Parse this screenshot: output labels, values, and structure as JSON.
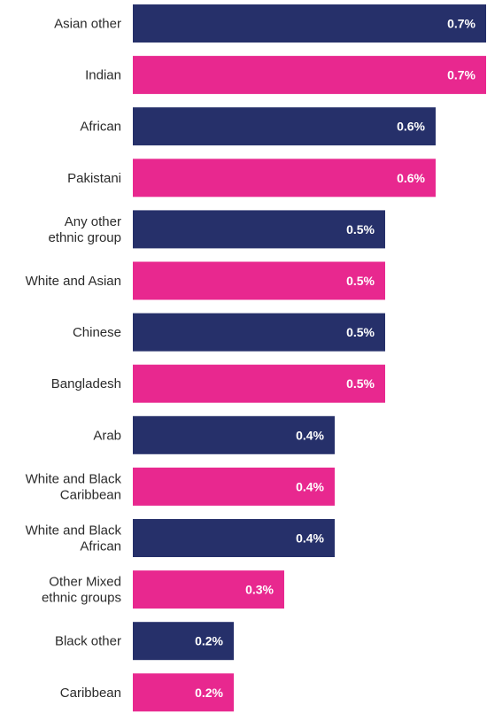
{
  "chart_data": {
    "type": "bar",
    "orientation": "horizontal",
    "categories": [
      [
        "Asian other"
      ],
      [
        "Indian"
      ],
      [
        "African"
      ],
      [
        "Pakistani"
      ],
      [
        "Any other",
        "ethnic group"
      ],
      [
        "White and Asian"
      ],
      [
        "Chinese"
      ],
      [
        "Bangladesh"
      ],
      [
        "Arab"
      ],
      [
        "White and Black",
        "Caribbean"
      ],
      [
        "White and Black",
        "African"
      ],
      [
        "Other Mixed",
        "ethnic groups"
      ],
      [
        "Black other"
      ],
      [
        "Caribbean"
      ]
    ],
    "values": [
      0.7,
      0.7,
      0.6,
      0.6,
      0.5,
      0.5,
      0.5,
      0.5,
      0.4,
      0.4,
      0.4,
      0.3,
      0.2,
      0.2
    ],
    "value_labels": [
      "0.7%",
      "0.7%",
      "0.6%",
      "0.6%",
      "0.5%",
      "0.5%",
      "0.5%",
      "0.5%",
      "0.4%",
      "0.4%",
      "0.4%",
      "0.3%",
      "0.2%",
      "0.2%"
    ],
    "colors": [
      "#26306a",
      "#e8288f"
    ],
    "xlim": [
      0,
      0.7
    ],
    "grid": false,
    "legend": "none",
    "title": "",
    "xlabel": "",
    "ylabel": ""
  }
}
